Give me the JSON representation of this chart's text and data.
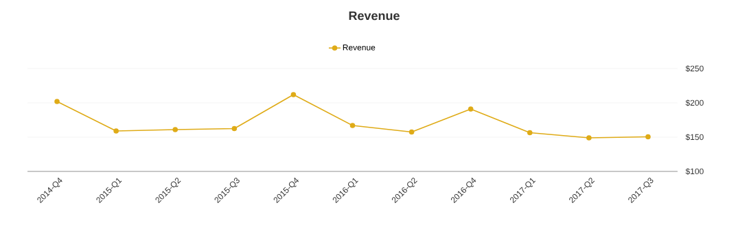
{
  "chart_data": {
    "type": "line",
    "title": "Revenue",
    "categories": [
      "2014-Q4",
      "2015-Q1",
      "2015-Q2",
      "2015-Q3",
      "2015-Q4",
      "2016-Q1",
      "2016-Q2",
      "2016-Q4",
      "2017-Q1",
      "2017-Q2",
      "2017-Q3"
    ],
    "series": [
      {
        "name": "Revenue",
        "color": "#dfab17",
        "values": [
          202,
          159,
          161,
          162.5,
          212,
          167,
          157.5,
          191,
          156.5,
          149,
          150.5
        ]
      }
    ],
    "ylim": [
      100,
      250
    ],
    "yticks": [
      {
        "value": 100,
        "label": "$100"
      },
      {
        "value": 150,
        "label": "$150"
      },
      {
        "value": 200,
        "label": "$200"
      },
      {
        "value": 250,
        "label": "$250"
      }
    ],
    "grid": "y",
    "legend": "top",
    "marker": "circle",
    "line_style": "solid"
  }
}
